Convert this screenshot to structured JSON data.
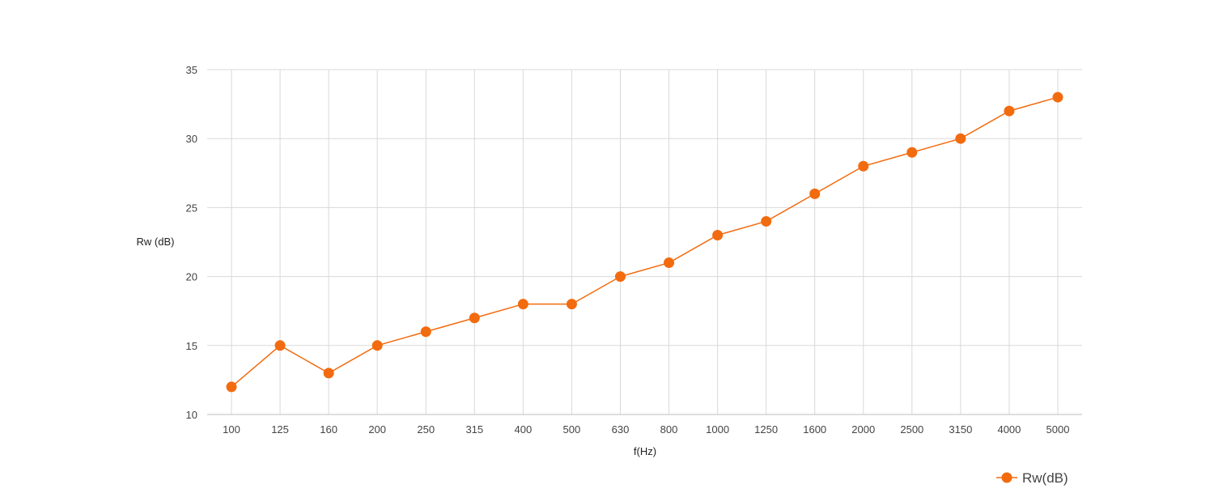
{
  "chart_data": {
    "type": "line",
    "title": "",
    "xlabel": "f(Hz)",
    "ylabel": "Rw (dB)",
    "categories": [
      "100",
      "125",
      "160",
      "200",
      "250",
      "315",
      "400",
      "500",
      "630",
      "800",
      "1000",
      "1250",
      "1600",
      "2000",
      "2500",
      "3150",
      "4000",
      "5000"
    ],
    "series": [
      {
        "name": "Rw(dB)",
        "values": [
          12,
          15,
          13,
          15,
          16,
          17,
          18,
          18,
          20,
          21,
          23,
          24,
          26,
          28,
          29,
          30,
          32,
          33
        ],
        "color": "#f26b0f"
      }
    ],
    "ylim": [
      10,
      35
    ],
    "yticks": [
      10,
      15,
      20,
      25,
      30,
      35
    ],
    "grid": true,
    "legend_position": "bottom-right"
  }
}
